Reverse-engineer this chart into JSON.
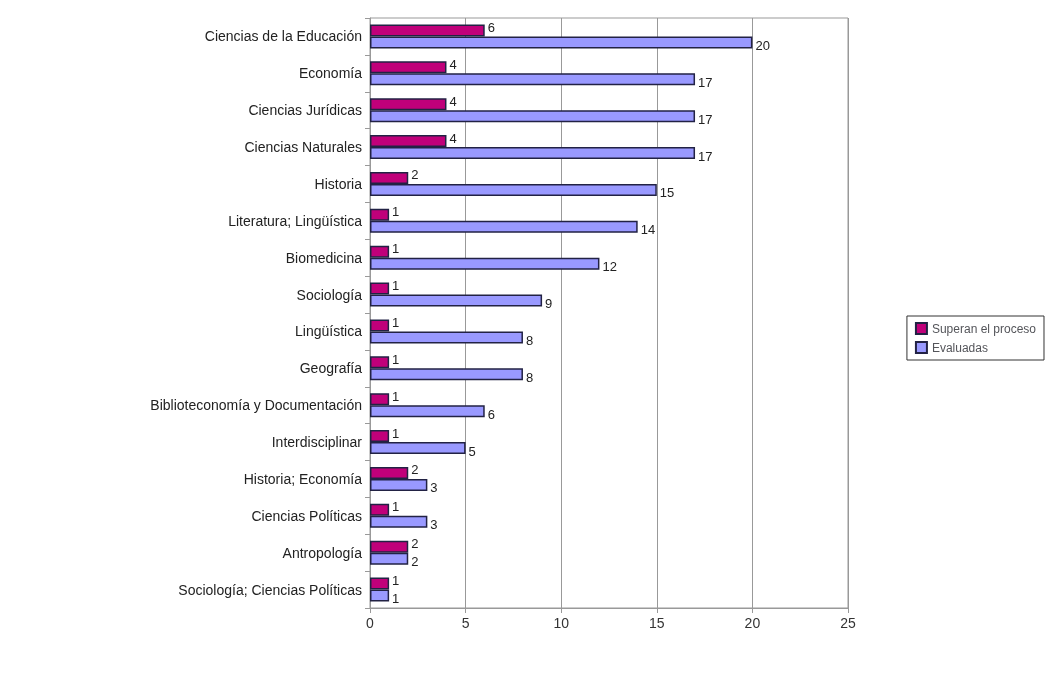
{
  "chart_data": {
    "type": "bar",
    "orientation": "horizontal",
    "categories": [
      "Ciencias de la Educación",
      "Economía",
      "Ciencias Jurídicas",
      "Ciencias Naturales",
      "Historia",
      "Literatura; Lingüística",
      "Biomedicina",
      "Sociología",
      "Lingüística",
      "Geografía",
      "Biblioteconomía y Documentación",
      "Interdisciplinar",
      "Historia; Economía",
      "Ciencias Políticas",
      "Antropología",
      "Sociología; Ciencias Políticas"
    ],
    "series": [
      {
        "name": "Superan el proceso",
        "color": "#c0007a",
        "values": [
          6,
          4,
          4,
          4,
          2,
          1,
          1,
          1,
          1,
          1,
          1,
          1,
          2,
          1,
          2,
          1
        ]
      },
      {
        "name": "Evaluadas",
        "color": "#9999ff",
        "values": [
          20,
          17,
          17,
          17,
          15,
          14,
          12,
          9,
          8,
          8,
          6,
          5,
          3,
          3,
          2,
          1
        ]
      }
    ],
    "xlim": [
      0,
      25
    ],
    "xticks": [
      0,
      5,
      10,
      15,
      20,
      25
    ],
    "grid": "x",
    "legend": "right",
    "data_labels": true
  }
}
